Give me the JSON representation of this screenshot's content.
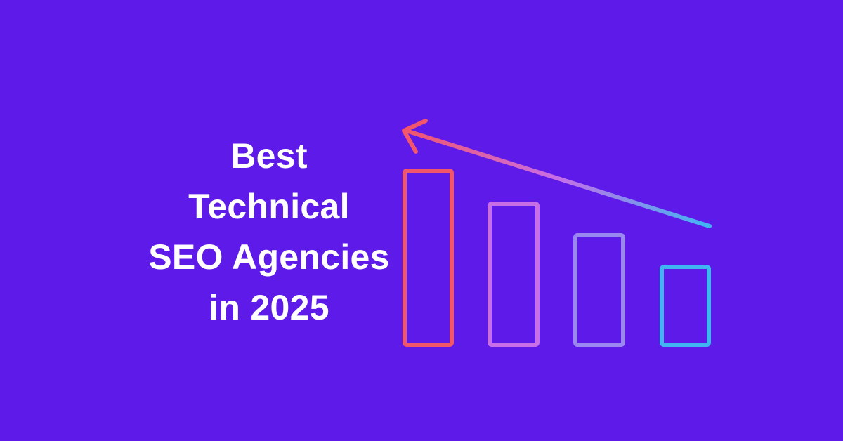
{
  "background_color": "#5d1ae8",
  "headline": {
    "lines": [
      "Best",
      "Technical",
      "SEO Agencies",
      "in 2025"
    ],
    "color": "#ffffff"
  },
  "graphic": {
    "description_icon": "declining-bar-chart-icon",
    "bars_count": 4,
    "gradient_start": "#f2566a",
    "gradient_mid": "#c86ee6",
    "gradient_end": "#3fb6f2"
  }
}
